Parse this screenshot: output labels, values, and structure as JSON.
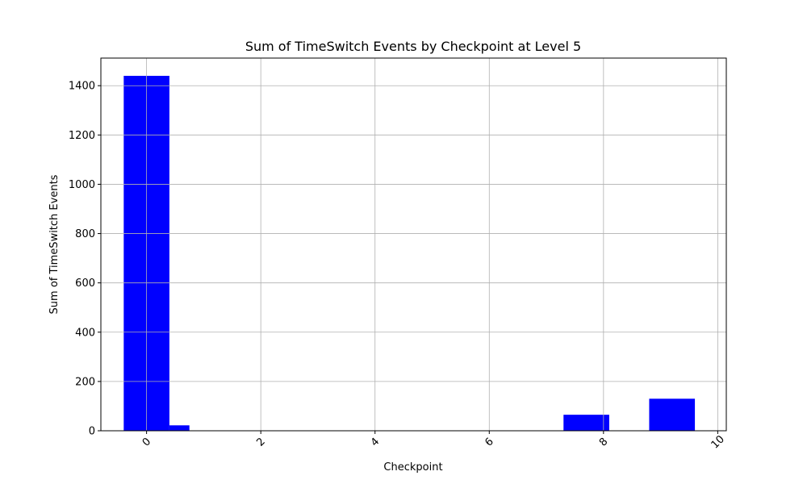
{
  "chart_data": {
    "type": "bar",
    "title": "Sum of TimeSwitch Events by Checkpoint at Level 5",
    "xlabel": "Checkpoint",
    "ylabel": "Sum of TimeSwitch Events",
    "xlim": [
      -0.8,
      10.15
    ],
    "ylim": [
      0,
      1512
    ],
    "xticks": [
      0,
      2,
      4,
      6,
      8,
      10
    ],
    "yticks": [
      0,
      200,
      400,
      600,
      800,
      1000,
      1200,
      1400
    ],
    "xtick_rotation": 45,
    "grid": true,
    "bar_color": "#0000ff",
    "bars": [
      {
        "x_start": -0.4,
        "x_end": 0.4,
        "value": 1440
      },
      {
        "x_start": 0.4,
        "x_end": 0.75,
        "value": 22
      },
      {
        "x_start": 7.3,
        "x_end": 8.1,
        "value": 65
      },
      {
        "x_start": 8.8,
        "x_end": 9.6,
        "value": 130
      }
    ]
  }
}
